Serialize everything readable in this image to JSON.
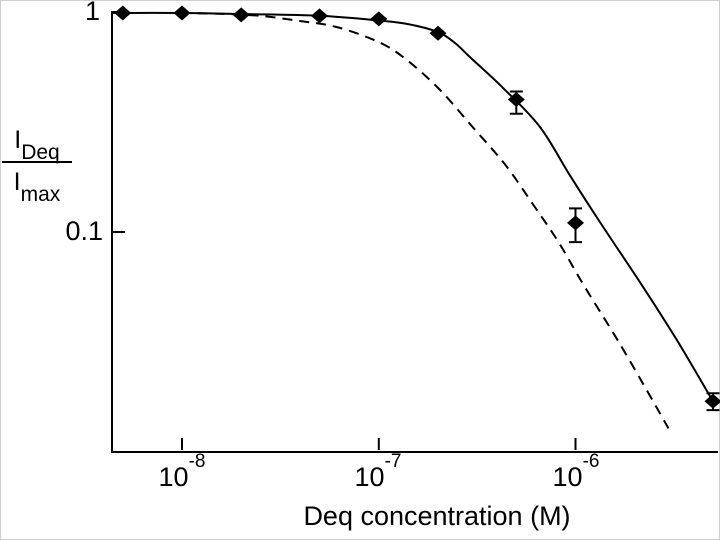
{
  "figure": {
    "background": "#ffffff",
    "ink_color": "#000000"
  },
  "chart_data": {
    "type": "scatter",
    "title": "",
    "xlabel": "Deq concentration (M)",
    "ylabel": "IDeq / Imax",
    "ylabel_parts": {
      "numerator_base": "I",
      "numerator_sub": "Deq",
      "denominator_base": "I",
      "denominator_sub": "max"
    },
    "x_scale": "log",
    "y_scale": "log",
    "xlim": [
      4.4e-09,
      5.3e-06
    ],
    "ylim": [
      0.01,
      1.0
    ],
    "grid": false,
    "legend": "none",
    "x_ticks": [
      {
        "base": "10",
        "exp": "-8",
        "value": 1e-08
      },
      {
        "base": "10",
        "exp": "-7",
        "value": 1e-07
      },
      {
        "base": "10",
        "exp": "-6",
        "value": 1e-06
      }
    ],
    "y_ticks": [
      {
        "label": "1",
        "value": 1.0
      },
      {
        "label": "0.1",
        "value": 0.1
      }
    ],
    "series": [
      {
        "name": "measured-points",
        "type": "scatter",
        "marker": "filled-diamond",
        "points": [
          {
            "x": 5e-09,
            "y": 0.99,
            "lo": null,
            "hi": null
          },
          {
            "x": 1e-08,
            "y": 0.99,
            "lo": null,
            "hi": null
          },
          {
            "x": 2e-08,
            "y": 0.97,
            "lo": null,
            "hi": null
          },
          {
            "x": 5e-08,
            "y": 0.96,
            "lo": null,
            "hi": null
          },
          {
            "x": 1e-07,
            "y": 0.93,
            "lo": null,
            "hi": null
          },
          {
            "x": 2e-07,
            "y": 0.8,
            "lo": null,
            "hi": null
          },
          {
            "x": 5e-07,
            "y": 0.4,
            "lo": 0.345,
            "hi": 0.435
          },
          {
            "x": 1e-06,
            "y": 0.11,
            "lo": 0.09,
            "hi": 0.128
          },
          {
            "x": 5e-06,
            "y": 0.017,
            "lo": 0.0155,
            "hi": 0.0185
          }
        ]
      },
      {
        "name": "fit-curve-solid",
        "type": "line",
        "style": "solid",
        "points": [
          [
            4.4e-09,
            0.99
          ],
          [
            1e-08,
            0.99
          ],
          [
            2e-08,
            0.979
          ],
          [
            5e-08,
            0.961
          ],
          [
            1e-07,
            0.915
          ],
          [
            1.4e-07,
            0.882
          ],
          [
            2e-07,
            0.81
          ],
          [
            2.44e-07,
            0.723
          ],
          [
            2.9e-07,
            0.625
          ],
          [
            4.3e-07,
            0.45
          ],
          [
            6.6e-07,
            0.3
          ],
          [
            9.4e-07,
            0.18
          ],
          [
            1.33e-06,
            0.111
          ],
          [
            2.13e-06,
            0.059
          ],
          [
            3.26e-06,
            0.0325
          ],
          [
            5e-06,
            0.017
          ]
        ]
      },
      {
        "name": "model-curve-dashed",
        "type": "line",
        "style": "dashed",
        "points": [
          [
            1.2e-08,
            0.986
          ],
          [
            1.75e-08,
            0.978
          ],
          [
            2.55e-08,
            0.959
          ],
          [
            3.97e-08,
            0.91
          ],
          [
            6.1e-08,
            0.855
          ],
          [
            1e-07,
            0.73
          ],
          [
            1.39e-07,
            0.605
          ],
          [
            2.05e-07,
            0.442
          ],
          [
            3e-07,
            0.3
          ],
          [
            4.4e-07,
            0.202
          ],
          [
            6.1e-07,
            0.133
          ],
          [
            8.2e-07,
            0.09
          ],
          [
            1.1e-06,
            0.0574
          ],
          [
            1.66e-06,
            0.0316
          ],
          [
            2.4e-06,
            0.0179
          ],
          [
            2.97e-06,
            0.0128
          ]
        ]
      }
    ]
  }
}
